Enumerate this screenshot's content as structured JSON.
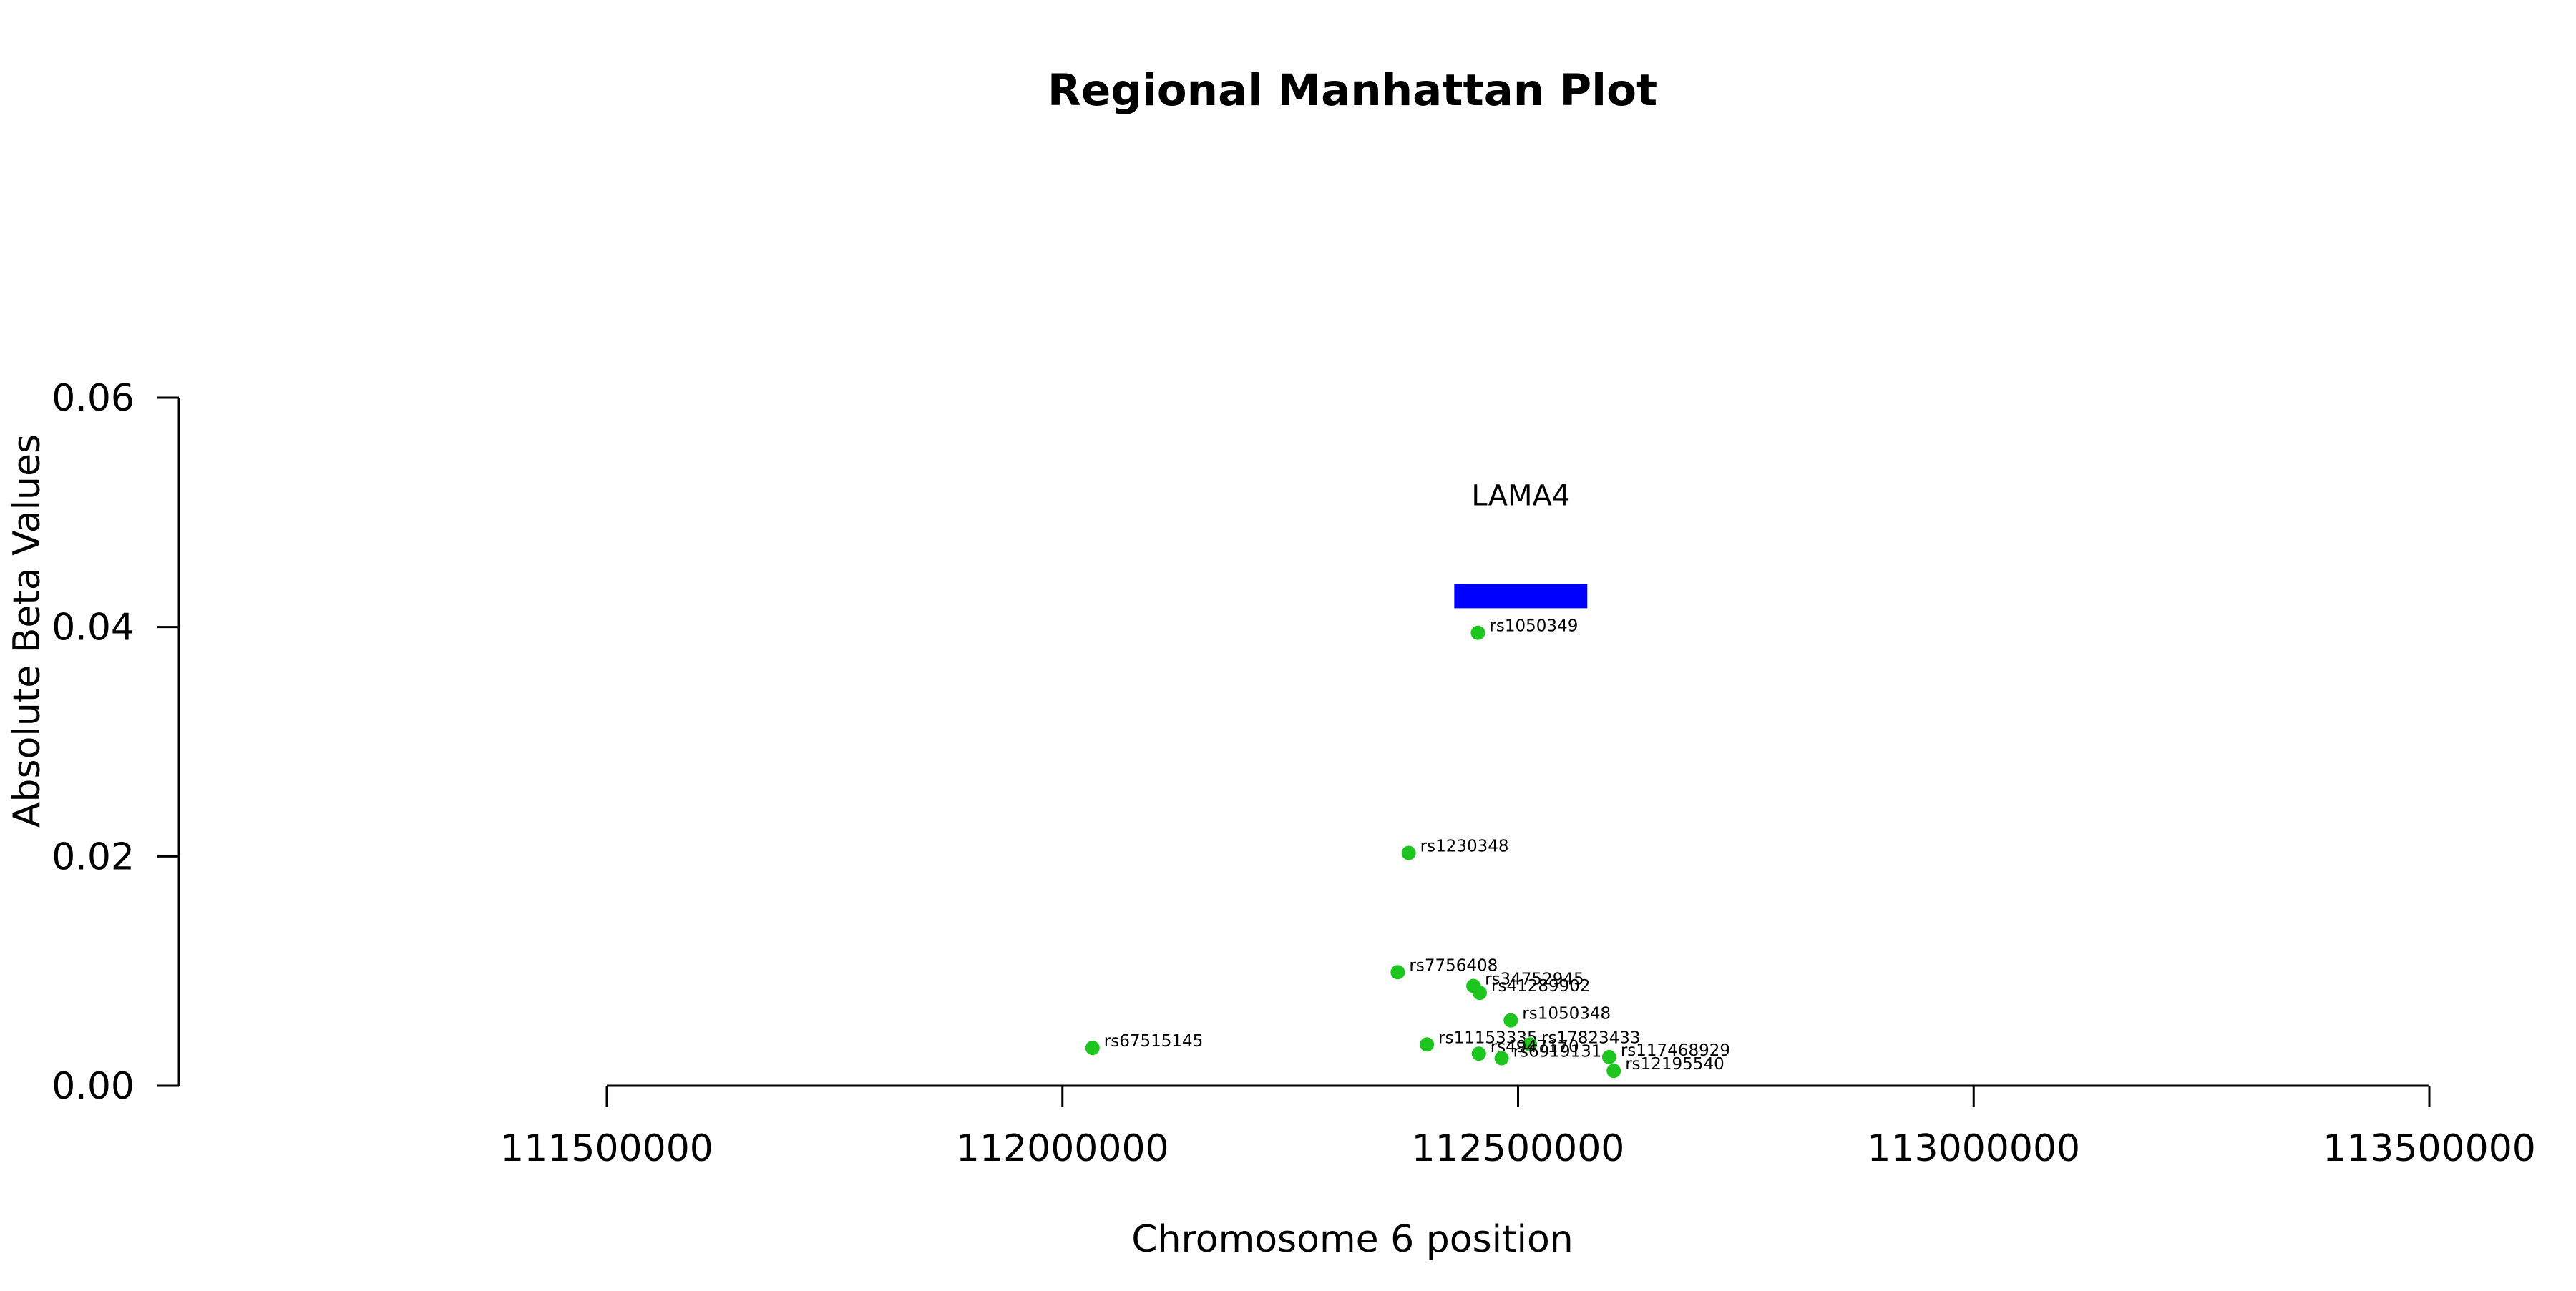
{
  "chart_data": {
    "type": "scatter",
    "title": "Regional Manhattan Plot",
    "xlabel": "Chromosome 6 position",
    "ylabel": "Absolute Beta Values",
    "xlim": [
      111500000,
      113500000
    ],
    "ylim": [
      0,
      0.06
    ],
    "x_ticks": [
      111500000,
      112000000,
      112500000,
      113000000,
      113500000
    ],
    "x_tick_labels": [
      "111500000",
      "112000000",
      "112500000",
      "113000000",
      "113500000"
    ],
    "y_ticks": [
      0,
      0.02,
      0.04,
      0.06
    ],
    "y_tick_labels": [
      "0.00",
      "0.02",
      "0.04",
      "0.06"
    ],
    "point_color": "#1ec51e",
    "points": [
      {
        "label": "rs1050349",
        "x": 112456000,
        "y": 0.0395
      },
      {
        "label": "rs1230348",
        "x": 112380000,
        "y": 0.0203
      },
      {
        "label": "rs7756408",
        "x": 112368000,
        "y": 0.0099
      },
      {
        "label": "rs34752945",
        "x": 112451000,
        "y": 0.0087
      },
      {
        "label": "rs41289902",
        "x": 112458000,
        "y": 0.0081
      },
      {
        "label": "rs1050348",
        "x": 112492000,
        "y": 0.0057
      },
      {
        "label": "rs67515145",
        "x": 112033000,
        "y": 0.0033
      },
      {
        "label": "rs11153335",
        "x": 112400000,
        "y": 0.0036
      },
      {
        "label": "rs17823433",
        "x": 112513000,
        "y": 0.0036
      },
      {
        "label": "rs4947170",
        "x": 112457000,
        "y": 0.0028
      },
      {
        "label": "rs6919131",
        "x": 112482000,
        "y": 0.0024
      },
      {
        "label": "rs117468929",
        "x": 112600000,
        "y": 0.0025
      },
      {
        "label": "rs12195540",
        "x": 112605000,
        "y": 0.0013
      }
    ],
    "genes": [
      {
        "name": "LAMA4",
        "start": 112430000,
        "end": 112576000,
        "y": 0.0427,
        "color": "#0000ff"
      }
    ],
    "grid": false,
    "legend": "none"
  }
}
